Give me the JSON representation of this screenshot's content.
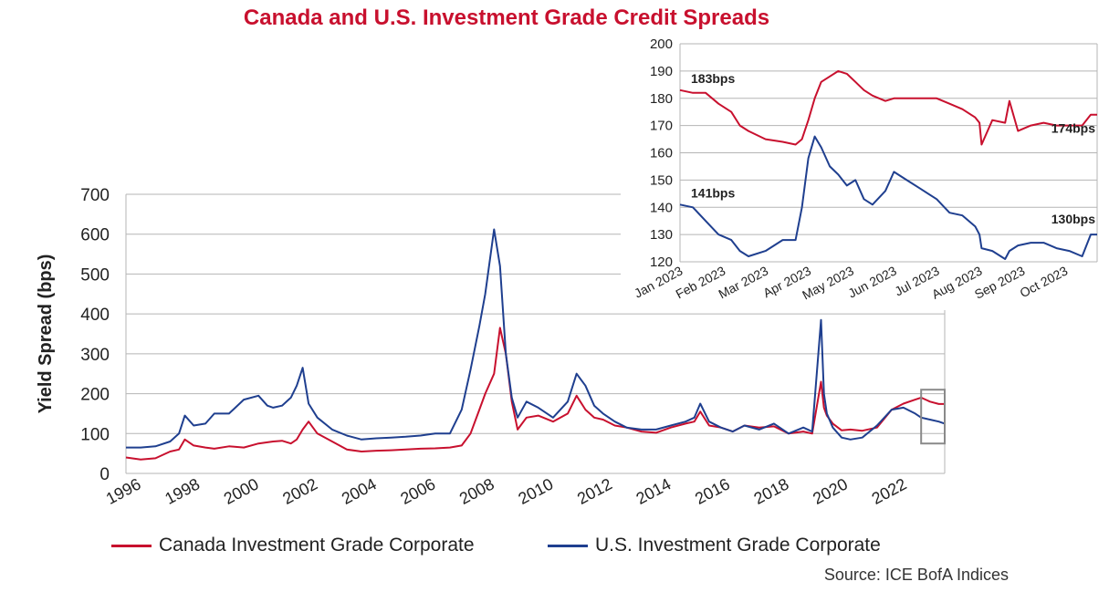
{
  "title": "Canada and U.S. Investment Grade Credit Spreads",
  "source": "Source: ICE BofA Indices",
  "colors": {
    "canada": "#c8102e",
    "us": "#1f3f8f",
    "title": "#c8102e",
    "grid": "#b5b5b5",
    "highlight_box": "#8a8a8a"
  },
  "legend": [
    {
      "label": "Canada Investment Grade Corporate",
      "color": "#c8102e"
    },
    {
      "label": "U.S. Investment Grade Corporate",
      "color": "#1f3f8f"
    }
  ],
  "chart_data": [
    {
      "type": "line",
      "ylabel": "Yield Spread (bps)",
      "ylim": [
        0,
        700
      ],
      "yticks": [
        0,
        100,
        200,
        300,
        400,
        500,
        600,
        700
      ],
      "xlim": [
        1996,
        2023.8
      ],
      "xticks": [
        "1996",
        "1998",
        "2000",
        "2002",
        "2004",
        "2006",
        "2008",
        "2010",
        "2012",
        "2014",
        "2016",
        "2018",
        "2020",
        "2022"
      ],
      "grid": "horizontal",
      "highlight": {
        "x": [
          2023.0,
          2023.8
        ],
        "y": [
          75,
          210
        ]
      },
      "x": [
        1996,
        1996.5,
        1997,
        1997.5,
        1997.8,
        1998,
        1998.3,
        1998.7,
        1999,
        1999.5,
        2000,
        2000.5,
        2000.8,
        2001,
        2001.3,
        2001.6,
        2001.8,
        2002,
        2002.2,
        2002.5,
        2003,
        2003.5,
        2004,
        2004.5,
        2005,
        2005.5,
        2006,
        2006.5,
        2007,
        2007.4,
        2007.7,
        2008,
        2008.2,
        2008.5,
        2008.7,
        2008.9,
        2009.1,
        2009.3,
        2009.6,
        2010,
        2010.5,
        2011,
        2011.3,
        2011.6,
        2011.9,
        2012.2,
        2012.6,
        2013,
        2013.5,
        2014,
        2014.5,
        2015,
        2015.3,
        2015.5,
        2015.8,
        2016.2,
        2016.6,
        2017,
        2017.5,
        2018,
        2018.5,
        2019,
        2019.3,
        2019.6,
        2019.7,
        2019.8,
        2020,
        2020.3,
        2020.6,
        2021,
        2021.5,
        2022,
        2022.4,
        2022.8,
        2023,
        2023.3,
        2023.6,
        2023.8
      ],
      "series": [
        {
          "name": "Canada Investment Grade Corporate",
          "color": "#c8102e",
          "values": [
            40,
            35,
            38,
            55,
            60,
            85,
            70,
            65,
            62,
            68,
            65,
            75,
            78,
            80,
            82,
            75,
            85,
            110,
            130,
            100,
            80,
            60,
            55,
            57,
            58,
            60,
            62,
            63,
            65,
            70,
            100,
            160,
            200,
            250,
            365,
            300,
            180,
            110,
            140,
            145,
            130,
            150,
            195,
            160,
            140,
            135,
            120,
            115,
            105,
            102,
            115,
            125,
            130,
            155,
            120,
            115,
            105,
            120,
            115,
            118,
            100,
            105,
            100,
            230,
            165,
            145,
            125,
            108,
            110,
            107,
            115,
            160,
            175,
            185,
            190,
            180,
            174,
            174
          ]
        },
        {
          "name": "U.S. Investment Grade Corporate",
          "color": "#1f3f8f",
          "values": [
            65,
            65,
            68,
            80,
            100,
            145,
            120,
            125,
            150,
            150,
            185,
            195,
            170,
            165,
            170,
            190,
            220,
            265,
            175,
            140,
            110,
            95,
            85,
            88,
            90,
            92,
            95,
            100,
            100,
            160,
            260,
            370,
            450,
            612,
            520,
            300,
            190,
            140,
            180,
            165,
            140,
            180,
            250,
            220,
            170,
            150,
            130,
            115,
            110,
            110,
            120,
            130,
            140,
            175,
            130,
            115,
            105,
            120,
            110,
            125,
            100,
            115,
            105,
            385,
            200,
            150,
            115,
            90,
            85,
            90,
            120,
            160,
            165,
            150,
            140,
            135,
            130,
            125
          ]
        }
      ]
    },
    {
      "type": "line",
      "ylim": [
        120,
        200
      ],
      "yticks": [
        120,
        130,
        140,
        150,
        160,
        170,
        180,
        190,
        200
      ],
      "xticks": [
        "Jan 2023",
        "Feb 2023",
        "Mar 2023",
        "Apr 2023",
        "May 2023",
        "Jun 2023",
        "Jul 2023",
        "Aug 2023",
        "Sep 2023",
        "Oct 2023"
      ],
      "xlim": [
        0,
        9.75
      ],
      "grid": "horizontal",
      "x": [
        0,
        0.3,
        0.6,
        0.9,
        1.2,
        1.4,
        1.6,
        2.0,
        2.4,
        2.7,
        2.85,
        3.0,
        3.15,
        3.3,
        3.5,
        3.7,
        3.9,
        4.1,
        4.3,
        4.5,
        4.8,
        5.0,
        5.3,
        5.6,
        6.0,
        6.3,
        6.6,
        6.9,
        7.0,
        7.05,
        7.3,
        7.6,
        7.7,
        7.9,
        8.2,
        8.5,
        8.8,
        9.1,
        9.4,
        9.6,
        9.75
      ],
      "series": [
        {
          "name": "Canada Investment Grade Corporate",
          "color": "#c8102e",
          "values": [
            183,
            182,
            182,
            178,
            175,
            170,
            168,
            165,
            164,
            163,
            165,
            172,
            180,
            186,
            188,
            190,
            189,
            186,
            183,
            181,
            179,
            180,
            180,
            180,
            180,
            178,
            176,
            173,
            171,
            163,
            172,
            171,
            179,
            168,
            170,
            171,
            170,
            170,
            170,
            174,
            174
          ],
          "start_label": "183bps",
          "end_label": "174bps"
        },
        {
          "name": "U.S. Investment Grade Corporate",
          "color": "#1f3f8f",
          "values": [
            141,
            140,
            135,
            130,
            128,
            124,
            122,
            124,
            128,
            128,
            140,
            158,
            166,
            162,
            155,
            152,
            148,
            150,
            143,
            141,
            146,
            153,
            150,
            147,
            143,
            138,
            137,
            133,
            130,
            125,
            124,
            121,
            124,
            126,
            127,
            127,
            125,
            124,
            122,
            130,
            130
          ],
          "start_label": "141bps",
          "end_label": "130bps"
        }
      ]
    }
  ]
}
